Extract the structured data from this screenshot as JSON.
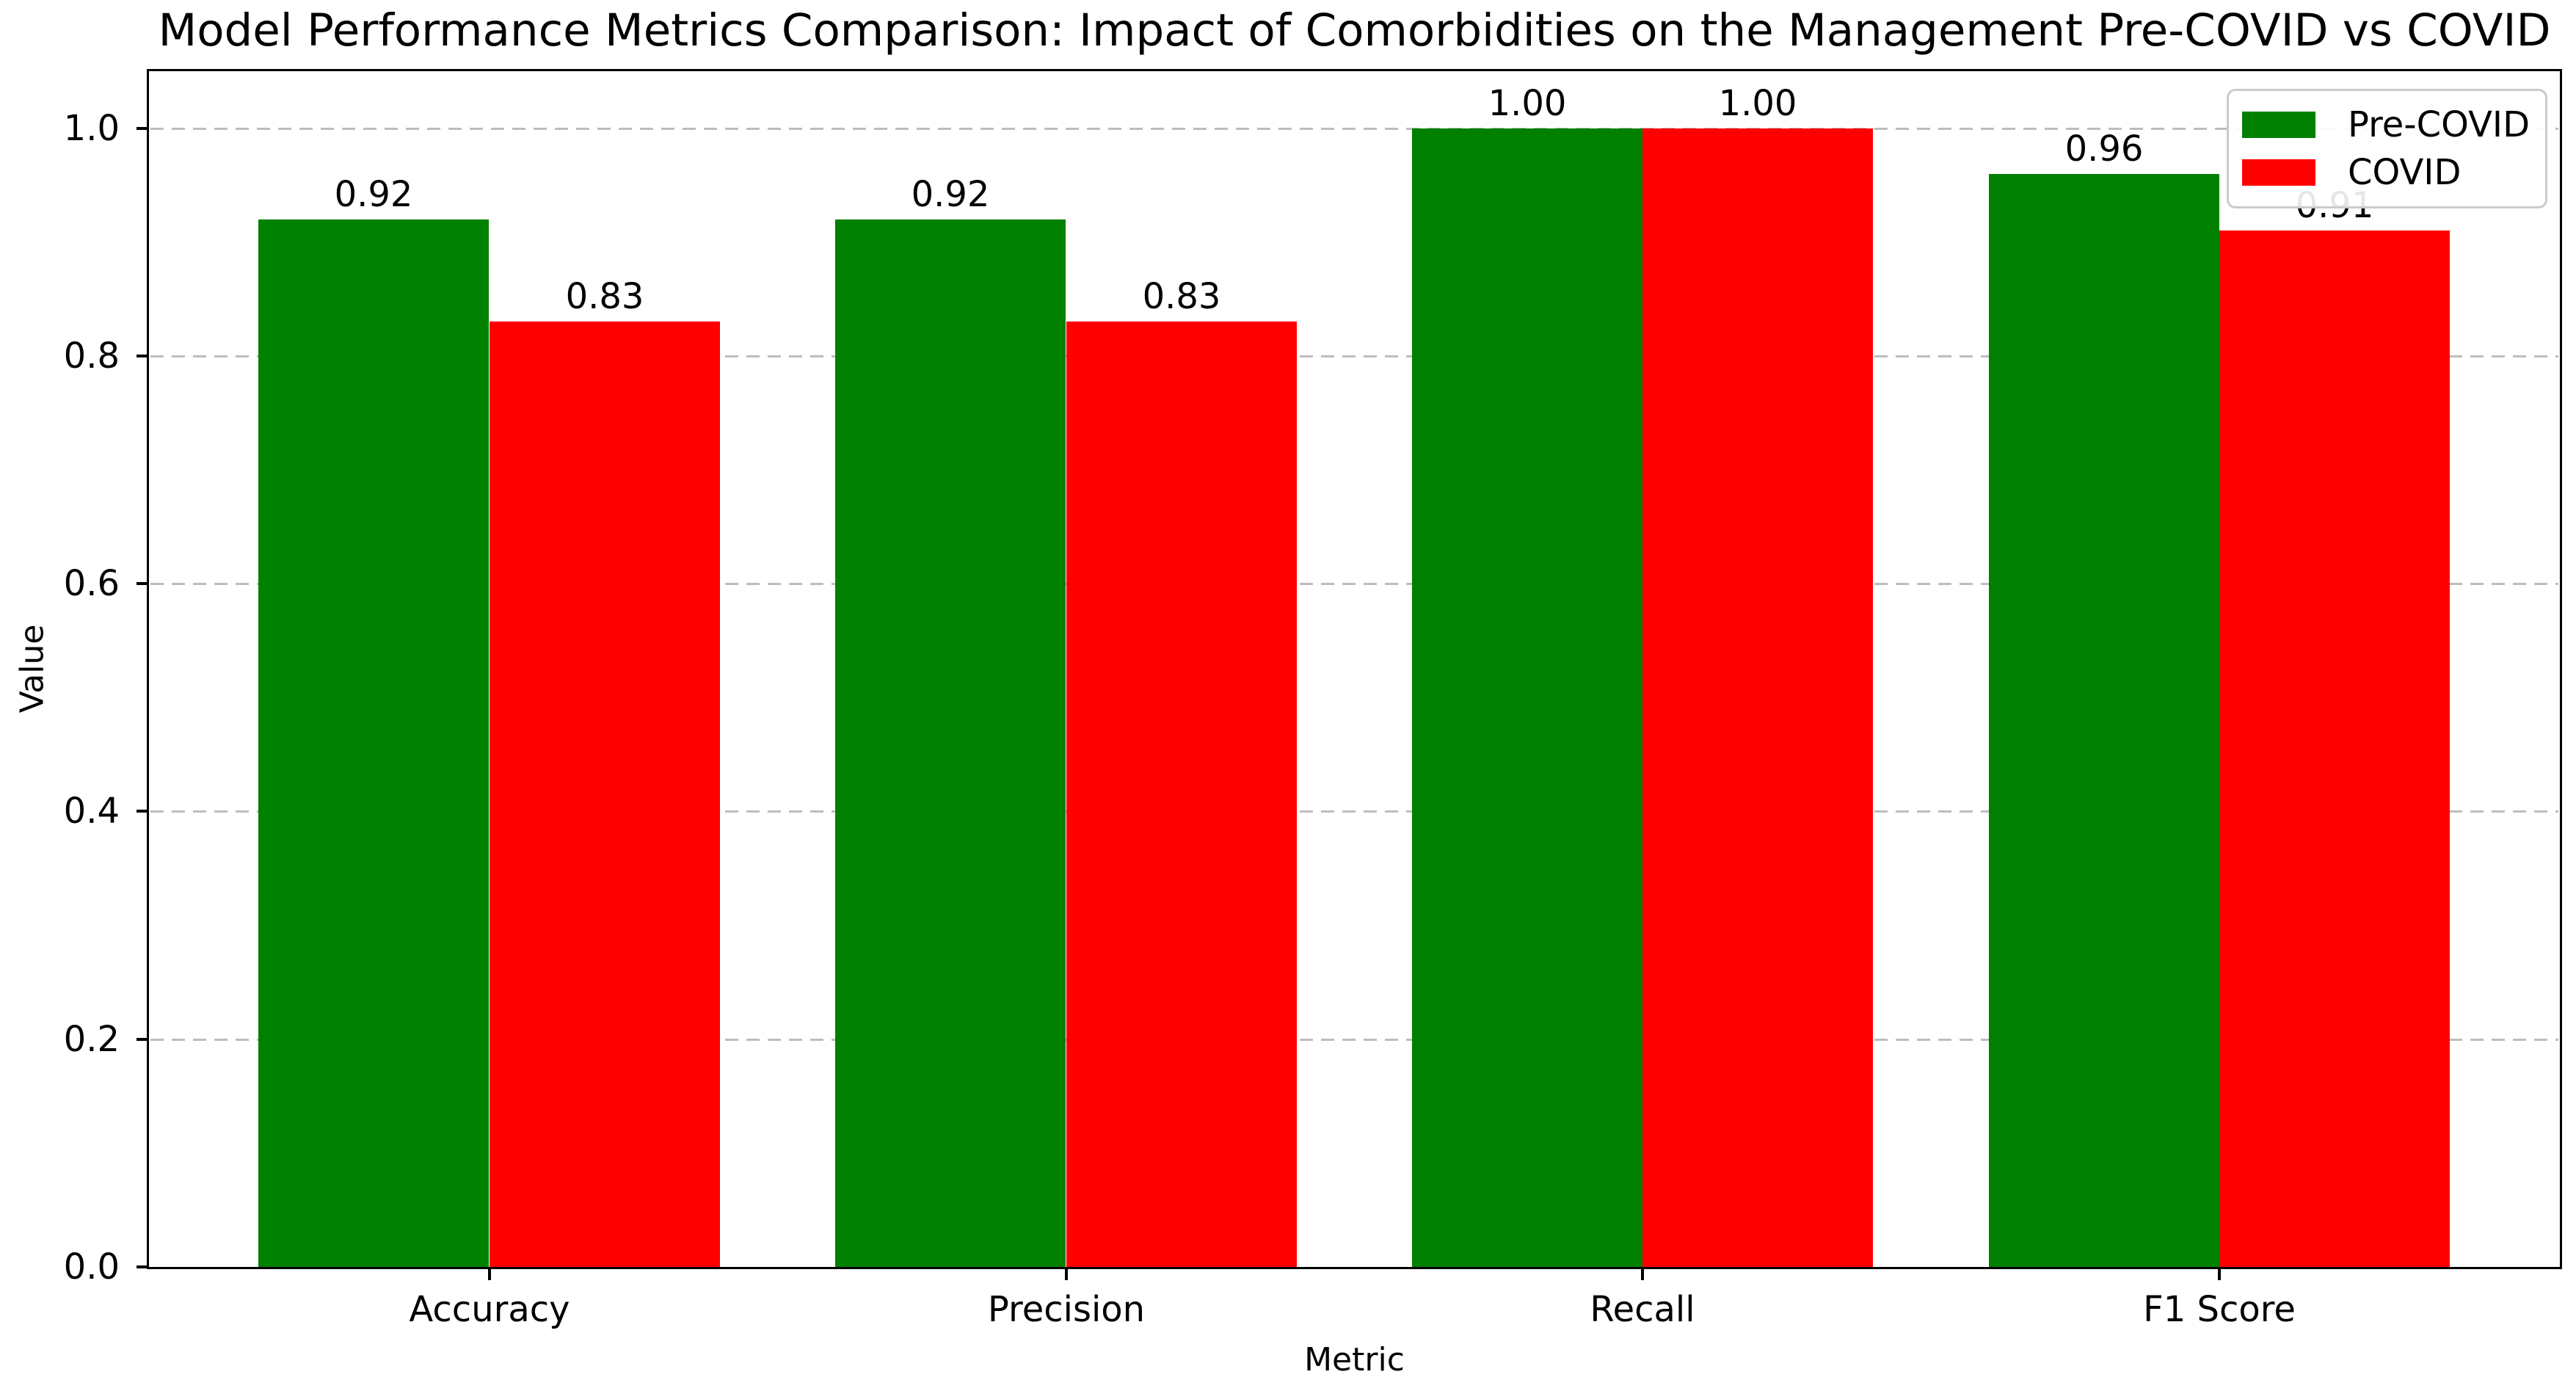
{
  "chart_data": {
    "type": "bar",
    "title": "Model Performance Metrics Comparison: Impact of Comorbidities on the Management Pre-COVID vs COVID",
    "xlabel": "Metric",
    "ylabel": "Value",
    "categories": [
      "Accuracy",
      "Precision",
      "Recall",
      "F1 Score"
    ],
    "series": [
      {
        "name": "Pre-COVID",
        "color": "#008000",
        "values": [
          0.92,
          0.92,
          1.0,
          0.96
        ],
        "labels": [
          "0.92",
          "0.92",
          "1.00",
          "0.96"
        ]
      },
      {
        "name": "COVID",
        "color": "#ff0000",
        "values": [
          0.83,
          0.83,
          1.0,
          0.91
        ],
        "labels": [
          "0.83",
          "0.83",
          "1.00",
          "0.91"
        ]
      }
    ],
    "bar_width": 0.4,
    "ylim": [
      0,
      1.05
    ],
    "y_ticks": [
      0.0,
      0.2,
      0.4,
      0.6,
      0.8,
      1.0
    ],
    "y_tick_labels": [
      "0.0",
      "0.2",
      "0.4",
      "0.6",
      "0.8",
      "1.0"
    ],
    "grid": "horizontal dashed gray lines at y ticks, drawn behind bars",
    "legend_position": "upper right",
    "legend_border_color": "#cbcbcb",
    "text_color": "#000000",
    "background_color": "#ffffff"
  }
}
